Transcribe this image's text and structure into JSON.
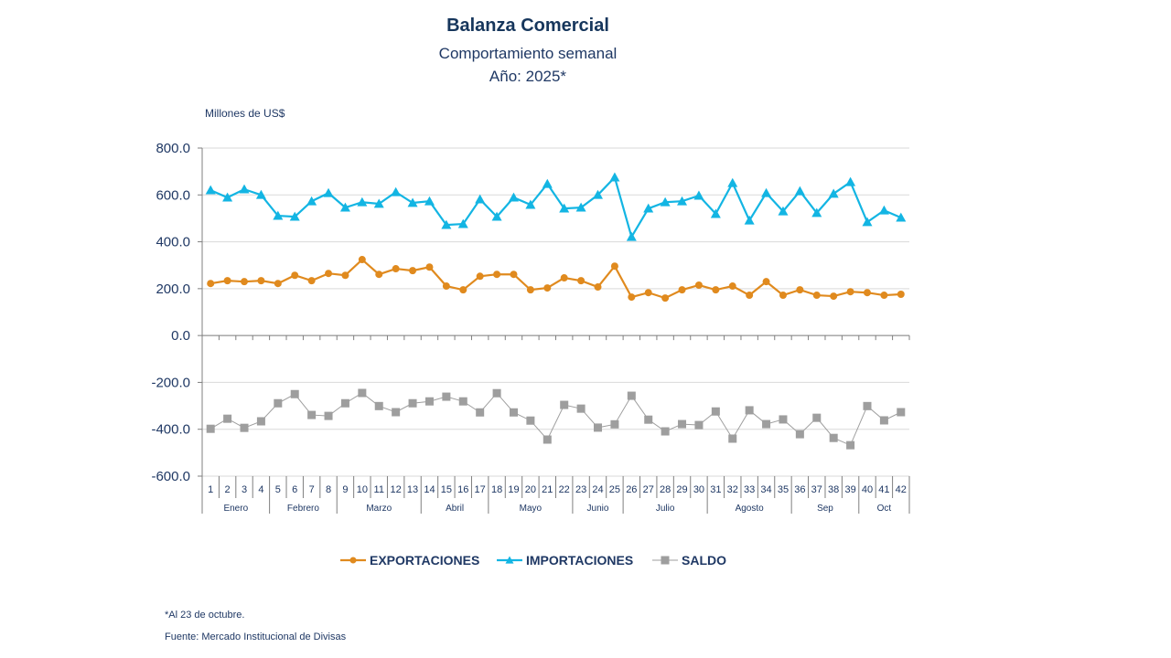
{
  "chart_data": {
    "type": "line",
    "title": "Balanza Comercial",
    "subtitle": "Comportamiento semanal",
    "subtitle2": "Año: 2025*",
    "ylabel": "Millones de US$",
    "xlabel": "",
    "ylim": [
      -600,
      800
    ],
    "yticks": [
      800,
      600,
      400,
      200,
      0,
      -200,
      -400,
      -600
    ],
    "ytick_labels": [
      "800.0",
      "600.0",
      "400.0",
      "200.0",
      "0.0",
      "-200.0",
      "-400.0",
      "-600.0"
    ],
    "grid": true,
    "legend_position": "bottom",
    "categories": [
      "1",
      "2",
      "3",
      "4",
      "5",
      "6",
      "7",
      "8",
      "9",
      "10",
      "11",
      "12",
      "13",
      "14",
      "15",
      "16",
      "17",
      "18",
      "19",
      "20",
      "21",
      "22",
      "23",
      "24",
      "25",
      "26",
      "27",
      "28",
      "29",
      "30",
      "31",
      "32",
      "33",
      "34",
      "35",
      "36",
      "37",
      "38",
      "39",
      "40",
      "41",
      "42"
    ],
    "months": [
      {
        "label": "Enero",
        "from": 1,
        "to": 4
      },
      {
        "label": "Febrero",
        "from": 5,
        "to": 8
      },
      {
        "label": "Marzo",
        "from": 9,
        "to": 13
      },
      {
        "label": "Abril",
        "from": 14,
        "to": 17
      },
      {
        "label": "Mayo",
        "from": 18,
        "to": 22
      },
      {
        "label": "Junio",
        "from": 23,
        "to": 25
      },
      {
        "label": "Julio",
        "from": 26,
        "to": 30
      },
      {
        "label": "Agosto",
        "from": 31,
        "to": 35
      },
      {
        "label": "Sep",
        "from": 36,
        "to": 39
      },
      {
        "label": "Oct",
        "from": 40,
        "to": 42
      }
    ],
    "series": [
      {
        "name": "EXPORTACIONES",
        "color": "#e08a1e",
        "marker": "circle",
        "values": [
          222,
          234,
          230,
          234,
          222,
          257,
          234,
          265,
          257,
          324,
          261,
          285,
          277,
          292,
          211,
          195,
          253,
          261,
          261,
          195,
          203,
          246,
          234,
          207,
          296,
          164,
          183,
          160,
          195,
          215,
          195,
          211,
          172,
          230,
          172,
          195,
          172,
          168,
          187,
          183,
          172,
          176
        ]
      },
      {
        "name": "IMPORTACIONES",
        "color": "#13b5e3",
        "marker": "triangle",
        "values": [
          620,
          589,
          624,
          600,
          511,
          507,
          573,
          608,
          546,
          569,
          562,
          612,
          566,
          573,
          472,
          476,
          581,
          507,
          589,
          558,
          647,
          542,
          546,
          600,
          675,
          421,
          542,
          569,
          573,
          597,
          519,
          651,
          491,
          608,
          530,
          616,
          523,
          605,
          655,
          484,
          534,
          503
        ]
      },
      {
        "name": "SALDO",
        "color": "#9e9e9e",
        "marker": "square",
        "values": [
          -398,
          -355,
          -394,
          -366,
          -289,
          -250,
          -339,
          -343,
          -289,
          -245,
          -301,
          -327,
          -289,
          -281,
          -261,
          -281,
          -328,
          -246,
          -328,
          -363,
          -444,
          -296,
          -312,
          -393,
          -379,
          -257,
          -359,
          -409,
          -378,
          -382,
          -324,
          -440,
          -319,
          -378,
          -358,
          -421,
          -351,
          -437,
          -468,
          -301,
          -362,
          -327
        ]
      }
    ]
  },
  "notes": {
    "footnote": "*Al 23 de octubre.",
    "source": "Fuente: Mercado Institucional de Divisas"
  }
}
